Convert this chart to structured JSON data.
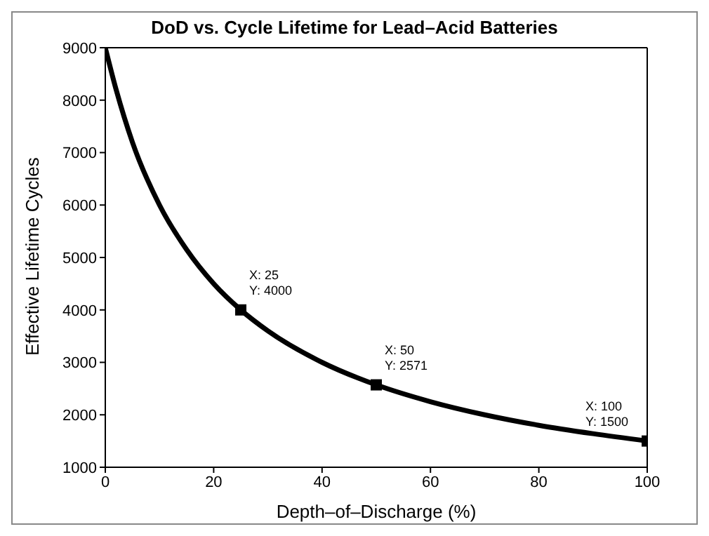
{
  "chart_data": {
    "type": "line",
    "title": "DoD vs. Cycle Lifetime for Lead–Acid Batteries",
    "xlabel": "Depth–of–Discharge (%)",
    "ylabel": "Effective Lifetime Cycles",
    "xlim": [
      0,
      100
    ],
    "xticks": [
      0,
      20,
      40,
      60,
      80,
      100
    ],
    "ylim": [
      1000,
      9000
    ],
    "yticks": [
      1000,
      2000,
      3000,
      4000,
      5000,
      6000,
      7000,
      8000,
      9000
    ],
    "grid": false,
    "series": [
      {
        "color": "#000000",
        "marker": "none",
        "x": [
          0,
          2,
          5,
          10,
          15,
          20,
          25,
          30,
          40,
          50,
          60,
          70,
          80,
          90,
          100
        ],
        "values": [
          9000,
          8200,
          7200,
          6000,
          5150,
          4500,
          4000,
          3600,
          3000,
          2571,
          2250,
          2000,
          1800,
          1640,
          1500
        ]
      },
      {
        "type": "scatter",
        "color": "#000000",
        "marker": "square",
        "x": [
          25,
          50,
          100
        ],
        "values": [
          4000,
          2571,
          1500
        ]
      }
    ],
    "annotations": [
      {
        "text": "X: 25\nY: 4000",
        "x": 25,
        "y": 4000
      },
      {
        "text": "X: 50\nY: 2571",
        "x": 50,
        "y": 2571
      },
      {
        "text": "X: 100\nY: 1500",
        "x": 100,
        "y": 1500
      }
    ]
  }
}
